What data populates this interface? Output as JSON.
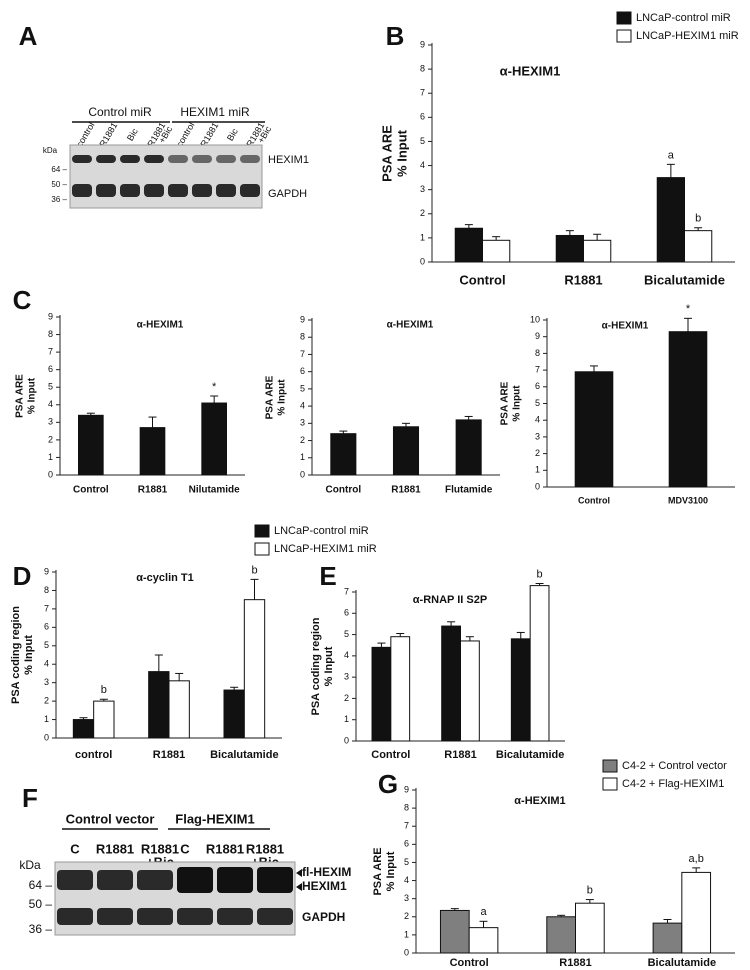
{
  "chart_data": [
    {
      "type": "bar",
      "panel": "B",
      "title": "α-HEXIM1",
      "ylabel": [
        "PSA ARE",
        "% Input"
      ],
      "categories": [
        "Control",
        "R1881",
        "Bicalutamide"
      ],
      "ylim": [
        0,
        9
      ],
      "yticks": [
        0,
        1,
        2,
        3,
        4,
        5,
        6,
        7,
        8,
        9
      ],
      "legend": "top-right",
      "series": [
        {
          "name": "LNCaP-control miR",
          "color": "#111111",
          "values": [
            1.4,
            1.1,
            3.5
          ],
          "errors": [
            0.15,
            0.2,
            0.55
          ]
        },
        {
          "name": "LNCaP-HEXIM1 miR",
          "color": "#ffffff",
          "values": [
            0.9,
            0.9,
            1.3
          ],
          "errors": [
            0.15,
            0.25,
            0.12
          ]
        }
      ],
      "annotations": [
        {
          "text": "a",
          "category": "Bicalutamide",
          "series": "LNCaP-control miR"
        },
        {
          "text": "b",
          "category": "Bicalutamide",
          "series": "LNCaP-HEXIM1 miR"
        }
      ]
    },
    {
      "type": "bar",
      "panel": "C",
      "title": "α-HEXIM1",
      "ylabel": [
        "PSA ARE",
        "% Input"
      ],
      "categories": [
        "Control",
        "R1881",
        "Nilutamide"
      ],
      "ylim": [
        0,
        9
      ],
      "yticks": [
        0,
        1,
        2,
        3,
        4,
        5,
        6,
        7,
        8,
        9
      ],
      "color": "#111111",
      "values": [
        3.4,
        2.7,
        4.1
      ],
      "errors": [
        0.12,
        0.6,
        0.4
      ],
      "annotations": [
        {
          "text": "*",
          "category": "Nilutamide"
        }
      ]
    },
    {
      "type": "bar",
      "title": "α-HEXIM1",
      "ylabel": [
        "PSA ARE",
        "% Input"
      ],
      "categories": [
        "Control",
        "R1881",
        "Flutamide"
      ],
      "ylim": [
        0,
        9
      ],
      "yticks": [
        0,
        1,
        2,
        3,
        4,
        5,
        6,
        7,
        8,
        9
      ],
      "color": "#111111",
      "values": [
        2.4,
        2.8,
        3.2
      ],
      "errors": [
        0.15,
        0.2,
        0.2
      ]
    },
    {
      "type": "bar",
      "title": "α-HEXIM1",
      "ylabel": [
        "PSA ARE",
        "% Input"
      ],
      "categories": [
        "Control",
        "MDV3100"
      ],
      "ylim": [
        0,
        10
      ],
      "yticks": [
        0,
        1,
        2,
        3,
        4,
        5,
        6,
        7,
        8,
        9,
        10
      ],
      "color": "#111111",
      "values": [
        6.9,
        9.3
      ],
      "errors": [
        0.35,
        0.8
      ],
      "annotations": [
        {
          "text": "*",
          "category": "MDV3100"
        }
      ]
    },
    {
      "type": "bar",
      "panel": "D",
      "title": "α-cyclin T1",
      "ylabel": [
        "PSA coding region",
        "% Input"
      ],
      "categories": [
        "control",
        "R1881",
        "Bicalutamide"
      ],
      "ylim": [
        0,
        9
      ],
      "yticks": [
        0,
        1,
        2,
        3,
        4,
        5,
        6,
        7,
        8,
        9
      ],
      "legend": "top",
      "series": [
        {
          "name": "LNCaP-control miR",
          "color": "#111111",
          "values": [
            1.0,
            3.6,
            2.6
          ],
          "errors": [
            0.1,
            0.9,
            0.15
          ]
        },
        {
          "name": "LNCaP-HEXIM1 miR",
          "color": "#ffffff",
          "values": [
            2.0,
            3.1,
            7.5
          ],
          "errors": [
            0.1,
            0.4,
            1.1
          ]
        }
      ],
      "annotations": [
        {
          "text": "b",
          "category": "control",
          "series": "LNCaP-HEXIM1 miR"
        },
        {
          "text": "b",
          "category": "Bicalutamide",
          "series": "LNCaP-HEXIM1 miR"
        }
      ]
    },
    {
      "type": "bar",
      "panel": "E",
      "title": "α-RNAP II S2P",
      "ylabel": [
        "PSA coding region",
        "% Input"
      ],
      "categories": [
        "Control",
        "R1881",
        "Bicalutamide"
      ],
      "ylim": [
        0,
        7
      ],
      "yticks": [
        0,
        1,
        2,
        3,
        4,
        5,
        6,
        7
      ],
      "series": [
        {
          "color": "#111111",
          "values": [
            4.4,
            5.4,
            4.8
          ],
          "errors": [
            0.2,
            0.2,
            0.3
          ]
        },
        {
          "color": "#ffffff",
          "values": [
            4.9,
            4.7,
            7.3
          ],
          "errors": [
            0.15,
            0.2,
            0.1
          ]
        }
      ],
      "annotations": [
        {
          "text": "b",
          "category": "Bicalutamide",
          "series": 1
        }
      ]
    },
    {
      "type": "bar",
      "panel": "G",
      "title": "α-HEXIM1",
      "ylabel": [
        "PSA ARE",
        "% Input"
      ],
      "categories": [
        "Control",
        "R1881",
        "Bicalutamide"
      ],
      "ylim": [
        0,
        9
      ],
      "yticks": [
        0,
        1,
        2,
        3,
        4,
        5,
        6,
        7,
        8,
        9
      ],
      "legend": "top-right",
      "series": [
        {
          "name": "C4-2 + Control vector",
          "color": "#7f7f7f",
          "values": [
            2.35,
            2.0,
            1.65
          ],
          "errors": [
            0.1,
            0.08,
            0.2
          ]
        },
        {
          "name": "C4-2 + Flag-HEXIM1",
          "color": "#ffffff",
          "values": [
            1.4,
            2.75,
            4.45
          ],
          "errors": [
            0.35,
            0.2,
            0.25
          ]
        }
      ],
      "annotations": [
        {
          "text": "a",
          "category": "Control",
          "series": "C4-2 + Flag-HEXIM1"
        },
        {
          "text": "b",
          "category": "R1881",
          "series": "C4-2 + Flag-HEXIM1"
        },
        {
          "text": "a,b",
          "category": "Bicalutamide",
          "series": "C4-2 + Flag-HEXIM1"
        }
      ]
    }
  ],
  "blots": [
    {
      "panel": "A",
      "groups": [
        "Control miR",
        "HEXIM1 miR"
      ],
      "lanes": [
        [
          "control"
        ],
        [
          "R1881"
        ],
        [
          "Bic"
        ],
        [
          "R1881",
          "+Bic"
        ],
        [
          "control"
        ],
        [
          "R1881"
        ],
        [
          "Bic"
        ],
        [
          "R1881",
          "+Bic"
        ]
      ],
      "kda": "kDa",
      "markers": [
        "64 –",
        "50 –",
        "36 –"
      ],
      "bands": [
        "HEXIM1",
        "GAPDH"
      ]
    },
    {
      "panel": "F",
      "groups": [
        "Control vector",
        "Flag-HEXIM1"
      ],
      "lanes": [
        [
          "C"
        ],
        [
          "R1881"
        ],
        [
          "R1881",
          "+Bic"
        ],
        [
          "C"
        ],
        [
          "R1881"
        ],
        [
          "R1881",
          "+Bic"
        ]
      ],
      "kda": "kDa",
      "markers": [
        "64 –",
        "50 –",
        "36 –"
      ],
      "bands": [
        "fl-HEXIM",
        "HEXIM1",
        "GAPDH"
      ]
    }
  ]
}
